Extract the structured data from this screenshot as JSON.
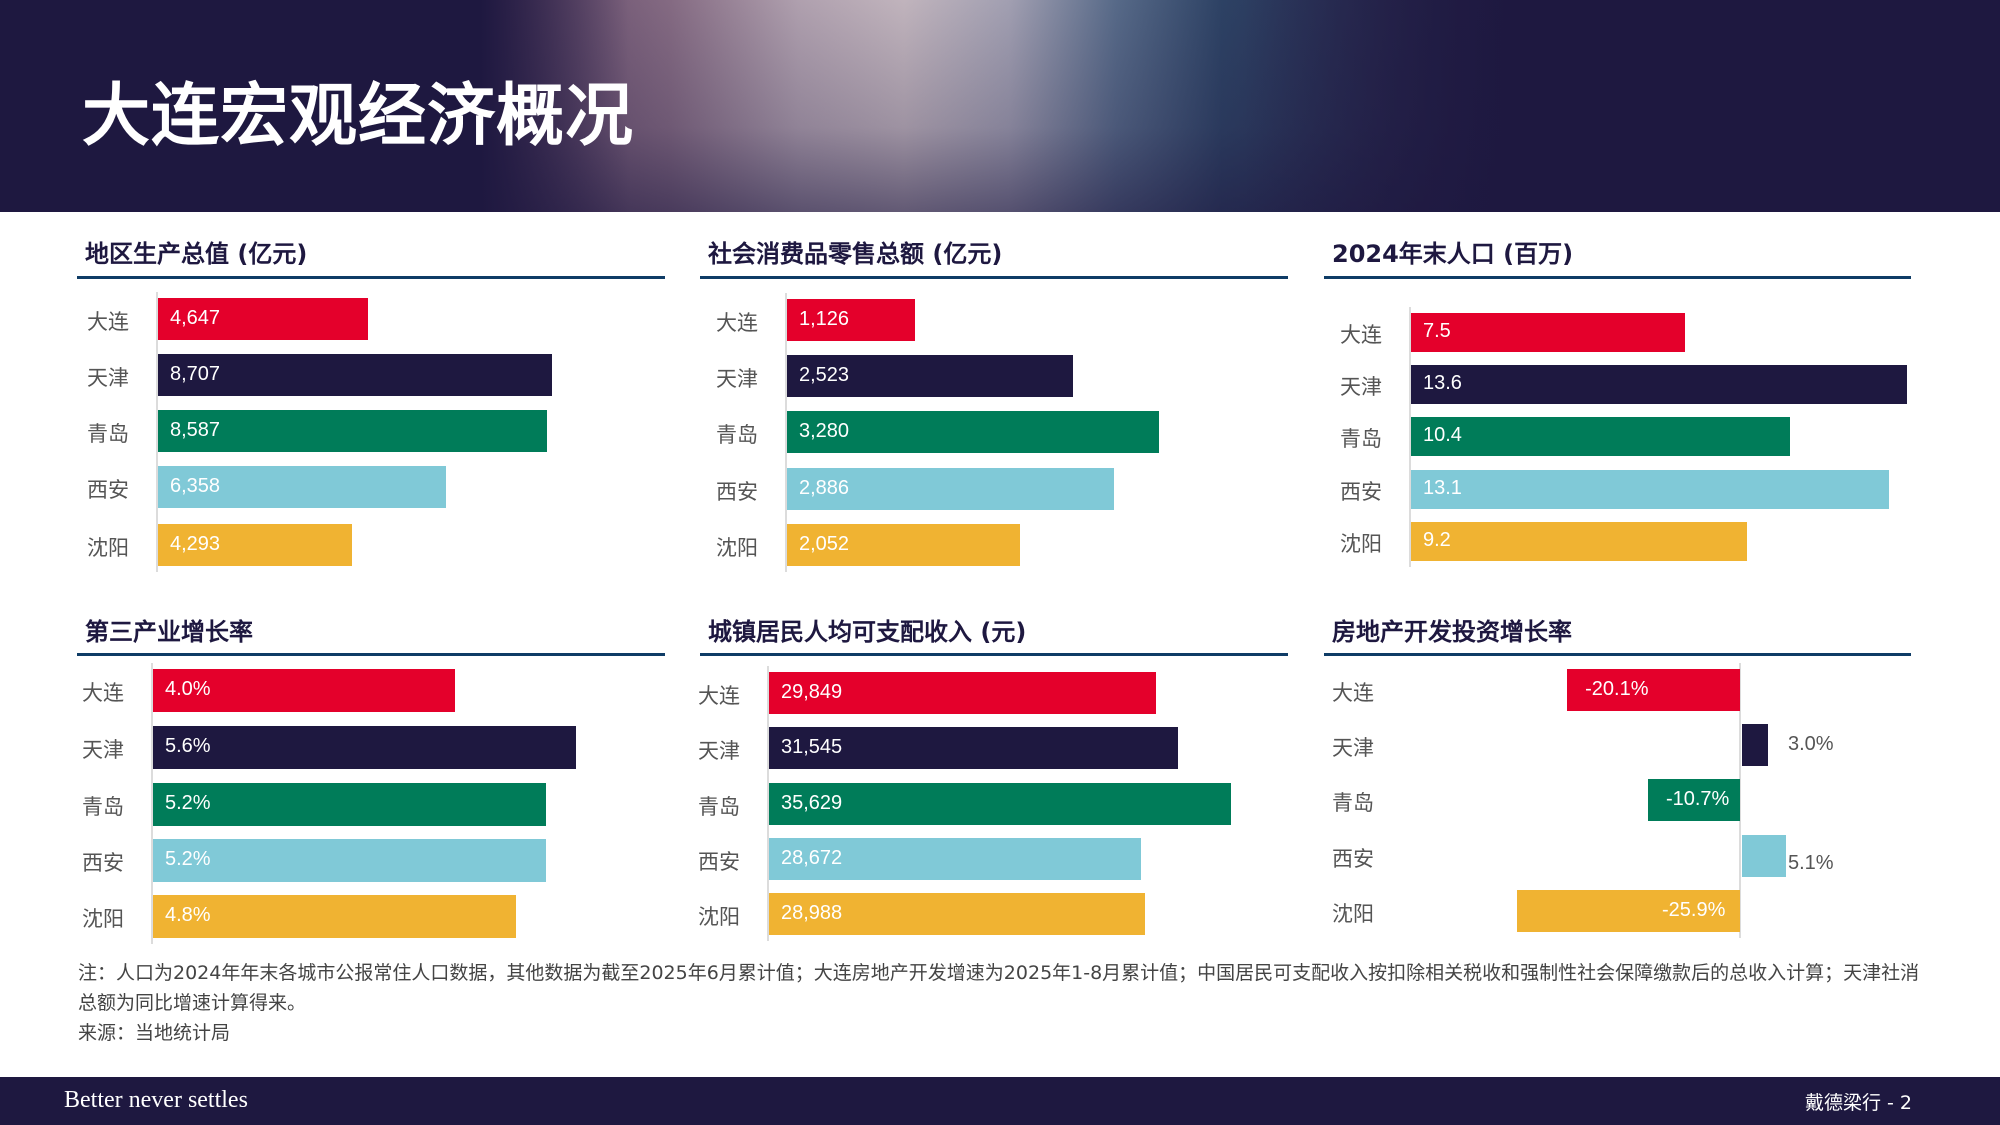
{
  "header": {
    "title": "大连宏观经济概况"
  },
  "colors": {
    "大连": "#E4002B",
    "天津": "#1E1840",
    "青岛": "#007C59",
    "西安": "#80C9D7",
    "沈阳": "#F0B332",
    "title": "#1E1840",
    "rule": "#0F3C66"
  },
  "chart_data": [
    {
      "type": "bar",
      "orientation": "horizontal",
      "title": "地区生产总值 (亿元)",
      "categories": [
        "大连",
        "天津",
        "青岛",
        "西安",
        "沈阳"
      ],
      "values": [
        4647,
        8707,
        8587,
        6358,
        4293
      ],
      "labels": [
        "4,647",
        "8,707",
        "8,587",
        "6,358",
        "4,293"
      ],
      "xlabel": "",
      "ylabel": "",
      "grid": false
    },
    {
      "type": "bar",
      "orientation": "horizontal",
      "title": "社会消费品零售总额 (亿元)",
      "categories": [
        "大连",
        "天津",
        "青岛",
        "西安",
        "沈阳"
      ],
      "values": [
        1126,
        2523,
        3280,
        2886,
        2052
      ],
      "labels": [
        "1,126",
        "2,523",
        "3,280",
        "2,886",
        "2,052"
      ],
      "xlabel": "",
      "ylabel": "",
      "grid": false
    },
    {
      "type": "bar",
      "orientation": "horizontal",
      "title": "2024年末人口 (百万)",
      "categories": [
        "大连",
        "天津",
        "青岛",
        "西安",
        "沈阳"
      ],
      "values": [
        7.5,
        13.6,
        10.4,
        13.1,
        9.2
      ],
      "labels": [
        "7.5",
        "13.6",
        "10.4",
        "13.1",
        "9.2"
      ],
      "xlabel": "",
      "ylabel": "",
      "grid": false
    },
    {
      "type": "bar",
      "orientation": "horizontal",
      "title": "第三产业增长率",
      "categories": [
        "大连",
        "天津",
        "青岛",
        "西安",
        "沈阳"
      ],
      "values": [
        4.0,
        5.6,
        5.2,
        5.2,
        4.8
      ],
      "labels": [
        "4.0%",
        "5.6%",
        "5.2%",
        "5.2%",
        "4.8%"
      ],
      "xlabel": "",
      "ylabel": "",
      "grid": false
    },
    {
      "type": "bar",
      "orientation": "horizontal",
      "title": "城镇居民人均可支配收入 (元)",
      "categories": [
        "大连",
        "天津",
        "青岛",
        "西安",
        "沈阳"
      ],
      "values": [
        29849,
        31545,
        35629,
        28672,
        28988
      ],
      "labels": [
        "29,849",
        "31,545",
        "35,629",
        "28,672",
        "28,988"
      ],
      "xlabel": "",
      "ylabel": "",
      "grid": false
    },
    {
      "type": "bar",
      "orientation": "horizontal",
      "title": "房地产开发投资增长率",
      "categories": [
        "大连",
        "天津",
        "青岛",
        "西安",
        "沈阳"
      ],
      "values": [
        -20.1,
        3.0,
        -10.7,
        5.1,
        -25.9
      ],
      "labels": [
        "-20.1%",
        "3.0%",
        "-10.7%",
        "5.1%",
        "-25.9%"
      ],
      "xlabel": "",
      "ylabel": "",
      "grid": false
    }
  ],
  "notes": {
    "line1": "注：人口为2024年年末各城市公报常住人口数据，其他数据为截至2025年6月累计值；大连房地产开发增速为2025年1-8月累计值；中国居民可支配收入按扣除相关税收和强制性社会保障缴款后的总收入计算；天津社消总额为同比增速计算得来。",
    "source": "来源：当地统计局"
  },
  "footer": {
    "tagline": "Better never settles",
    "page_ref": "戴德梁行 - 2"
  }
}
